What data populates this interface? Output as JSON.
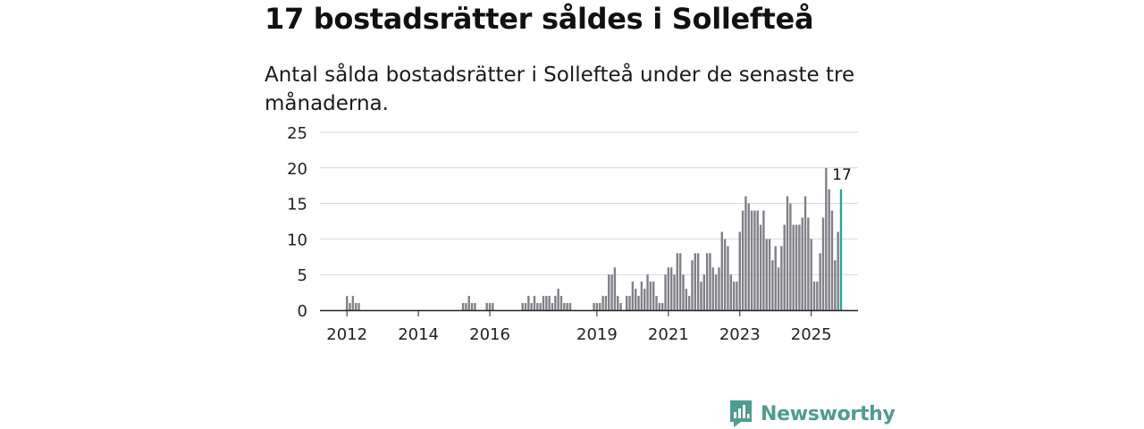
{
  "header": {
    "title": "17 bostadsrätter såldes i Sollefteå",
    "subtitle": "Antal sålda bostadsrätter i Sollefteå under de senaste tre månaderna."
  },
  "brand": {
    "name": "Newsworthy",
    "icon": "newsworthy-logo-icon",
    "color": "#4f9c92"
  },
  "chart_data": {
    "type": "bar",
    "title": "17 bostadsrätter såldes i Sollefteå",
    "subtitle": "Antal sålda bostadsrätter i Sollefteå under de senaste tre månaderna.",
    "xlabel": "",
    "ylabel": "",
    "ylim": [
      0,
      25
    ],
    "yticks": [
      0,
      5,
      10,
      15,
      20,
      25
    ],
    "xticks": [
      {
        "label": "2012",
        "index": 0
      },
      {
        "label": "2014",
        "index": 24
      },
      {
        "label": "2016",
        "index": 48
      },
      {
        "label": "2019",
        "index": 84
      },
      {
        "label": "2021",
        "index": 108
      },
      {
        "label": "2023",
        "index": 132
      },
      {
        "label": "2025",
        "index": 156
      }
    ],
    "grid": true,
    "bar_color": "#808088",
    "highlight_color": "#26a69a",
    "highlight_label": "17",
    "start": "2012-01",
    "unit": "month",
    "values": [
      2,
      1,
      2,
      1,
      1,
      0,
      0,
      0,
      0,
      0,
      0,
      0,
      0,
      0,
      0,
      0,
      0,
      0,
      0,
      0,
      0,
      0,
      0,
      0,
      0,
      0,
      0,
      0,
      0,
      0,
      0,
      0,
      0,
      0,
      0,
      0,
      0,
      0,
      0,
      1,
      1,
      2,
      1,
      1,
      0,
      0,
      0,
      1,
      1,
      1,
      0,
      0,
      0,
      0,
      0,
      0,
      0,
      0,
      0,
      1,
      1,
      2,
      1,
      2,
      1,
      1,
      2,
      2,
      2,
      1,
      2,
      3,
      2,
      1,
      1,
      1,
      0,
      0,
      0,
      0,
      0,
      0,
      0,
      1,
      1,
      1,
      2,
      2,
      5,
      5,
      6,
      2,
      1,
      0,
      2,
      2,
      4,
      3,
      2,
      4,
      3,
      5,
      4,
      4,
      2,
      1,
      1,
      5,
      6,
      6,
      5,
      8,
      8,
      5,
      3,
      2,
      7,
      8,
      8,
      4,
      5,
      8,
      8,
      6,
      5,
      6,
      11,
      10,
      9,
      5,
      4,
      4,
      11,
      14,
      16,
      15,
      14,
      14,
      14,
      12,
      14,
      10,
      10,
      7,
      9,
      6,
      9,
      12,
      16,
      15,
      12,
      12,
      12,
      13,
      16,
      13,
      10,
      4,
      4,
      8,
      13,
      20,
      17,
      14,
      7,
      11,
      17
    ]
  }
}
